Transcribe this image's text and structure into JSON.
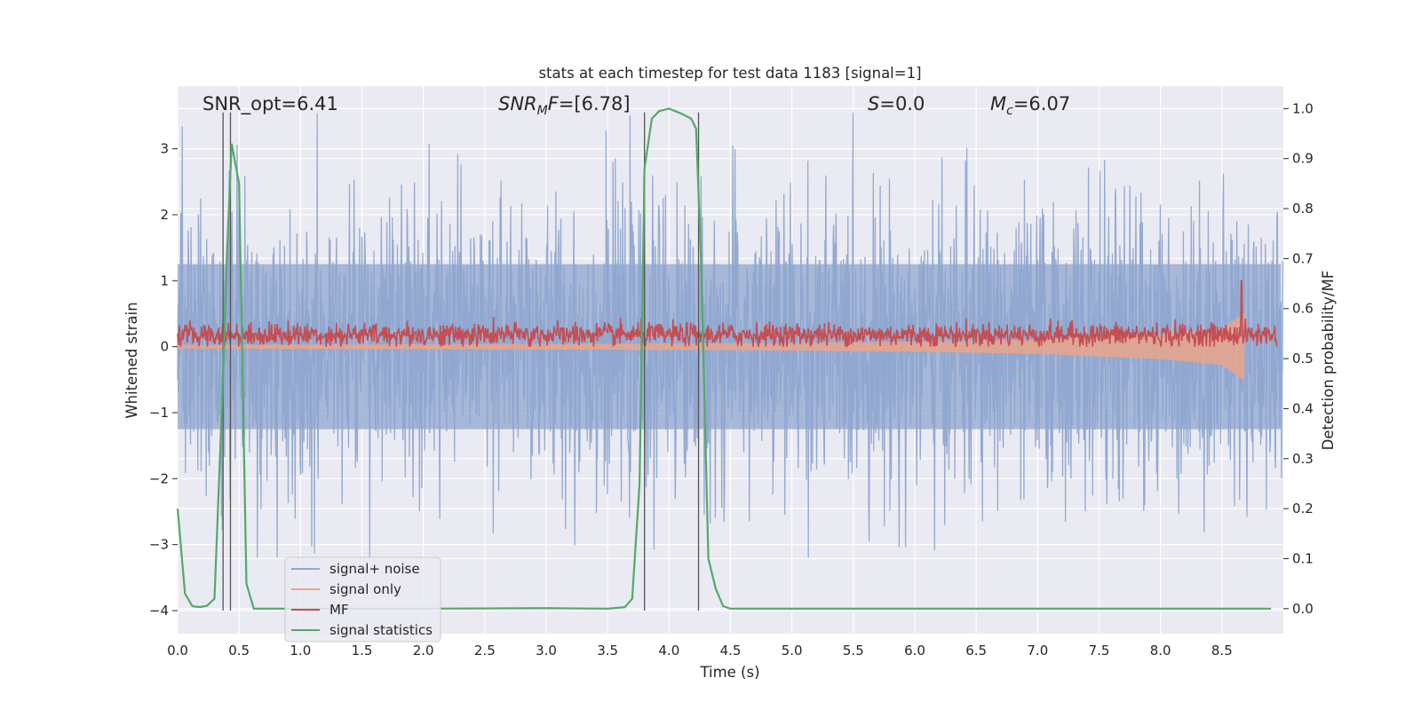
{
  "chart_data": {
    "type": "line",
    "title": "stats at each timestep for test data 1183 [signal=1]",
    "xlabel": "Time (s)",
    "ylabel": "Whitened strain",
    "y2label": "Detection probability/MF",
    "xlim": [
      0.0,
      9.0
    ],
    "ylim": [
      -4.35,
      3.95
    ],
    "y2lim": [
      -0.05,
      1.045
    ],
    "xticks": [
      "0.0",
      "0.5",
      "1.0",
      "1.5",
      "2.0",
      "2.5",
      "3.0",
      "3.5",
      "4.0",
      "4.5",
      "5.0",
      "5.5",
      "6.0",
      "6.5",
      "7.0",
      "7.5",
      "8.0",
      "8.5"
    ],
    "yticks": [
      "3",
      "2",
      "1",
      "0",
      "−1",
      "−2",
      "−3",
      "−4"
    ],
    "y2ticks": [
      "1.0",
      "0.9",
      "0.8",
      "0.7",
      "0.6",
      "0.5",
      "0.4",
      "0.3",
      "0.2",
      "0.1",
      "0.0"
    ],
    "grid": true,
    "legend_placement": "lower-left",
    "annotations": [
      {
        "text": "SNR_opt=6.41",
        "x": 0.2
      },
      {
        "text": "SNR_MF=[6.78]",
        "x": 2.6
      },
      {
        "text": "S=0.0",
        "x": 5.6
      },
      {
        "text": "M_c=6.07",
        "x": 6.6
      }
    ],
    "vertical_lines_x": [
      0.37,
      0.43,
      3.8,
      4.24
    ],
    "series": [
      {
        "name": "signal+ noise",
        "color": "#8fa6cf",
        "axis": "left",
        "amplitude_range": [
          -3.2,
          3.55
        ]
      },
      {
        "name": "signal only",
        "color": "#eaa48b",
        "axis": "left",
        "envelope_x": [
          0.0,
          2.0,
          4.0,
          5.0,
          6.0,
          7.0,
          8.0,
          8.5,
          8.68
        ],
        "envelope_amp": [
          0.02,
          0.03,
          0.04,
          0.05,
          0.07,
          0.1,
          0.18,
          0.27,
          0.5
        ]
      },
      {
        "name": "MF",
        "color": "#c44e52",
        "axis": "left",
        "range": [
          0.0,
          0.65
        ],
        "spike": {
          "x": 8.66,
          "y": 1.0
        }
      },
      {
        "name": "signal statistics",
        "color": "#55a868",
        "axis": "right",
        "x": [
          0.0,
          0.06,
          0.12,
          0.18,
          0.24,
          0.3,
          0.36,
          0.4,
          0.44,
          0.5,
          0.56,
          0.62,
          0.7,
          1.0,
          2.0,
          3.0,
          3.5,
          3.64,
          3.7,
          3.76,
          3.8,
          3.86,
          3.92,
          4.0,
          4.1,
          4.18,
          4.22,
          4.26,
          4.32,
          4.38,
          4.44,
          4.5,
          5.0,
          6.0,
          7.0,
          8.0,
          8.9
        ],
        "y": [
          0.2,
          0.03,
          0.005,
          0.003,
          0.006,
          0.02,
          0.4,
          0.7,
          0.93,
          0.85,
          0.05,
          0.0,
          0.0,
          0.0,
          0.0,
          0.001,
          0.0,
          0.003,
          0.02,
          0.25,
          0.88,
          0.98,
          0.995,
          1.0,
          0.99,
          0.98,
          0.96,
          0.7,
          0.1,
          0.04,
          0.005,
          0.0,
          0.0,
          0.0,
          0.0,
          0.0,
          0.0
        ]
      }
    ]
  }
}
